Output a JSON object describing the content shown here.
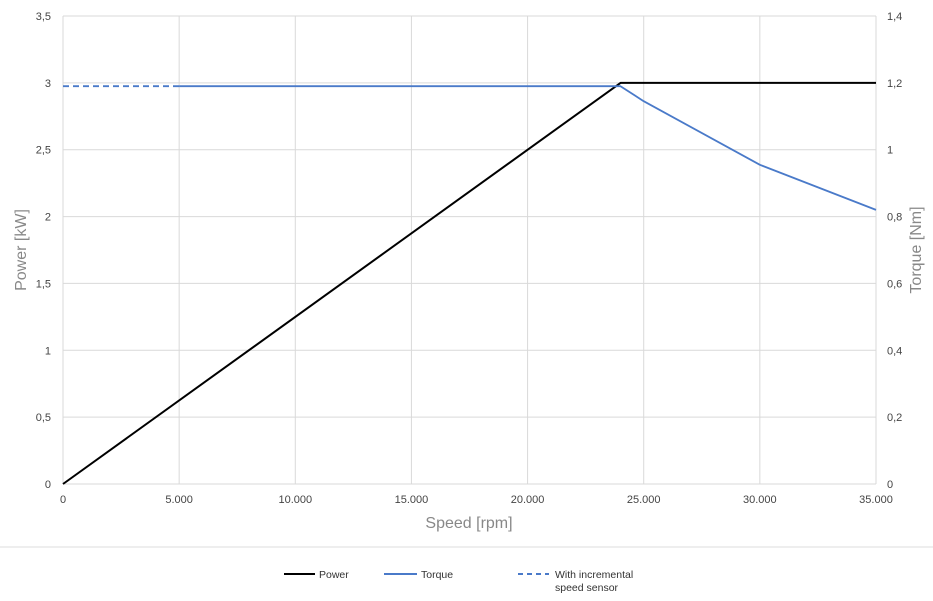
{
  "chart_data": {
    "type": "line",
    "xlabel": "Speed [rpm]",
    "ylabel": "Power [kW]",
    "y2label": "Torque [Nm]",
    "xlim": [
      0,
      35000
    ],
    "ylim": [
      0,
      3.5
    ],
    "y2lim": [
      0,
      1.4
    ],
    "grid": true,
    "legend_position": "bottom",
    "x_ticks": [
      "0",
      "5.000",
      "10.000",
      "15.000",
      "20.000",
      "25.000",
      "30.000",
      "35.000"
    ],
    "y_ticks": [
      "0",
      "0,5",
      "1",
      "1,5",
      "2",
      "2,5",
      "3",
      "3,5"
    ],
    "y2_ticks": [
      "0",
      "0,2",
      "0,4",
      "0,6",
      "0,8",
      "1",
      "1,2",
      "1,4"
    ],
    "series": [
      {
        "name": "Power",
        "axis": "left",
        "color": "#000000",
        "style": "solid",
        "points": [
          [
            0,
            0
          ],
          [
            24000,
            3.0
          ],
          [
            35000,
            3.0
          ]
        ]
      },
      {
        "name": "Torque",
        "axis": "right",
        "color": "#4a7ac9",
        "style": "solid",
        "points": [
          [
            5000,
            1.19
          ],
          [
            24000,
            1.19
          ],
          [
            25000,
            1.145
          ],
          [
            30000,
            0.955
          ],
          [
            35000,
            0.82
          ]
        ]
      },
      {
        "name": "With incremental speed sensor",
        "axis": "right",
        "color": "#4a7ac9",
        "style": "dashed",
        "points": [
          [
            0,
            1.19
          ],
          [
            5000,
            1.19
          ]
        ]
      }
    ]
  },
  "legend": [
    {
      "label_lines": [
        "Power"
      ]
    },
    {
      "label_lines": [
        "Torque"
      ]
    },
    {
      "label_lines": [
        "With incremental",
        "speed sensor"
      ]
    }
  ]
}
